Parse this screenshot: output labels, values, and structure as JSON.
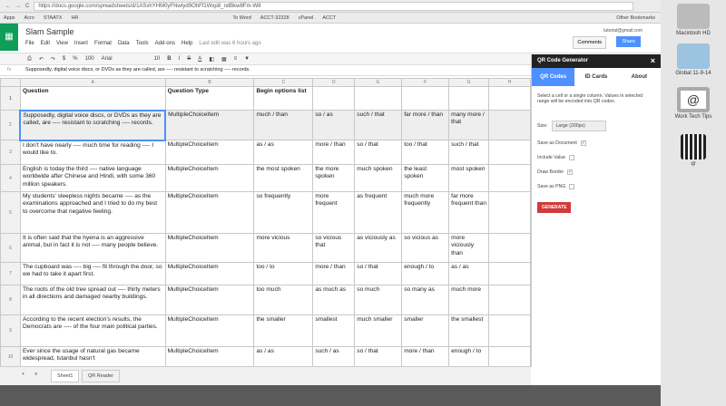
{
  "browser": {
    "url": "https://docs.google.com/spreadsheets/d/1ASxhYHM0yFNwtyd9OhFf1Wxp8_ndBkw8Fm-W8",
    "bookmarks": [
      "Apps",
      "Acro",
      "STAATX",
      "HR",
      "To Word",
      "ACCT-32328",
      "cPanel",
      "ACCT",
      "Other Bookmarks"
    ]
  },
  "doc": {
    "title": "Slam Sample",
    "menu": [
      "File",
      "Edit",
      "View",
      "Insert",
      "Format",
      "Data",
      "Tools",
      "Add-ons",
      "Help"
    ],
    "save_status": "Last edit was 6 hours ago",
    "account": "tutorial@gmail.com",
    "comments": "Comments",
    "share": "Share"
  },
  "toolbar": {
    "zoom": "100",
    "font": "Arial",
    "size": "10"
  },
  "formula": "Supposedly, digital voice discs, or DVDs as they are called, are ---- resistant to scratching ---- records.",
  "columns": [
    "A",
    "B",
    "C",
    "D",
    "E",
    "F",
    "G",
    "H"
  ],
  "rows": [
    [
      "1",
      "Question",
      "Question Type",
      "Begin options list",
      "",
      "",
      "",
      ""
    ],
    [
      "2",
      "Supposedly, digital voice discs, or DVDs as they are called, are ---- resistant to scratching ---- records.",
      "MultipleChoiceItem",
      "much / than",
      "so / as",
      "such / that",
      "far more / than",
      "many more / that"
    ],
    [
      "3",
      "I don't have nearly ---- much time for reading ---- I would like to.",
      "MultipleChoiceItem",
      "as / as",
      "more / than",
      "so / that",
      "too / that",
      "such / that"
    ],
    [
      "4",
      "English is today the third ---- native language worldwide after Chinese and Hindi, with some 360 million speakers.",
      "MultipleChoiceItem",
      "the most spoken",
      "the more spoken",
      "much spoken",
      "the least spoken",
      "most spoken"
    ],
    [
      "5",
      "My students' sleepless nights became ---- as the examinations approached and I tried to do my best to overcome that negative feeling.",
      "MultipleChoiceItem",
      "so frequently",
      "more frequent",
      "as frequent",
      "much more frequently",
      "far more frequent than"
    ],
    [
      "6",
      "It is often said that the hyena is an aggressive animal, but in fact it is not ---- many people believe.",
      "MultipleChoiceItem",
      "more vicious",
      "so vicious that",
      "as viciously as",
      "so vicious as",
      "more viciously than"
    ],
    [
      "7",
      "The cupboard was ---- big ---- fit through the door, so we had to take it apart first.",
      "MultipleChoiceItem",
      "too / to",
      "more / than",
      "so / that",
      "enough / to",
      "as / as"
    ],
    [
      "8",
      "The roots of the old tree spread out ---- thirty meters in all directions and damaged nearby buildings.",
      "MultipleChoiceItem",
      "too much",
      "as much as",
      "so much",
      "so many as",
      "much more"
    ],
    [
      "9",
      "According to the recent election's results, the Democrats are ---- of the four main political parties.",
      "MultipleChoiceItem",
      "the smaller",
      "smallest",
      "much smaller",
      "smaller",
      "the smallest"
    ],
    [
      "10",
      "Ever since the usage of natural gas became widespread, Istanbul hasn't",
      "MultipleChoiceItem",
      "as / as",
      "such / as",
      "so / that",
      "more / than",
      "enough / to"
    ]
  ],
  "sheet_tabs": [
    "Sheet1",
    "QR Reader"
  ],
  "sidebar": {
    "title": "QR Code Generator",
    "tabs": [
      "QR Codes",
      "ID Cards",
      "About"
    ],
    "instructions": "Select a cell or a single column. Values in selected range will be encoded into QR codes.",
    "size_label": "Size:",
    "size_value": "Large (200px)",
    "options": [
      {
        "label": "Save as Document",
        "checked": true
      },
      {
        "label": "Include Value",
        "checked": false
      },
      {
        "label": "Draw Border",
        "checked": true
      },
      {
        "label": "Save as PNG",
        "checked": false
      }
    ],
    "generate": "GENERATE"
  },
  "desktop": [
    "Macintosh HD",
    "Global 11-9-14",
    "Work Tech Tips",
    "qr"
  ],
  "colors": {
    "accent": "#4d90fe",
    "sheets_green": "#0f9d58",
    "generate": "#d23a3a"
  }
}
